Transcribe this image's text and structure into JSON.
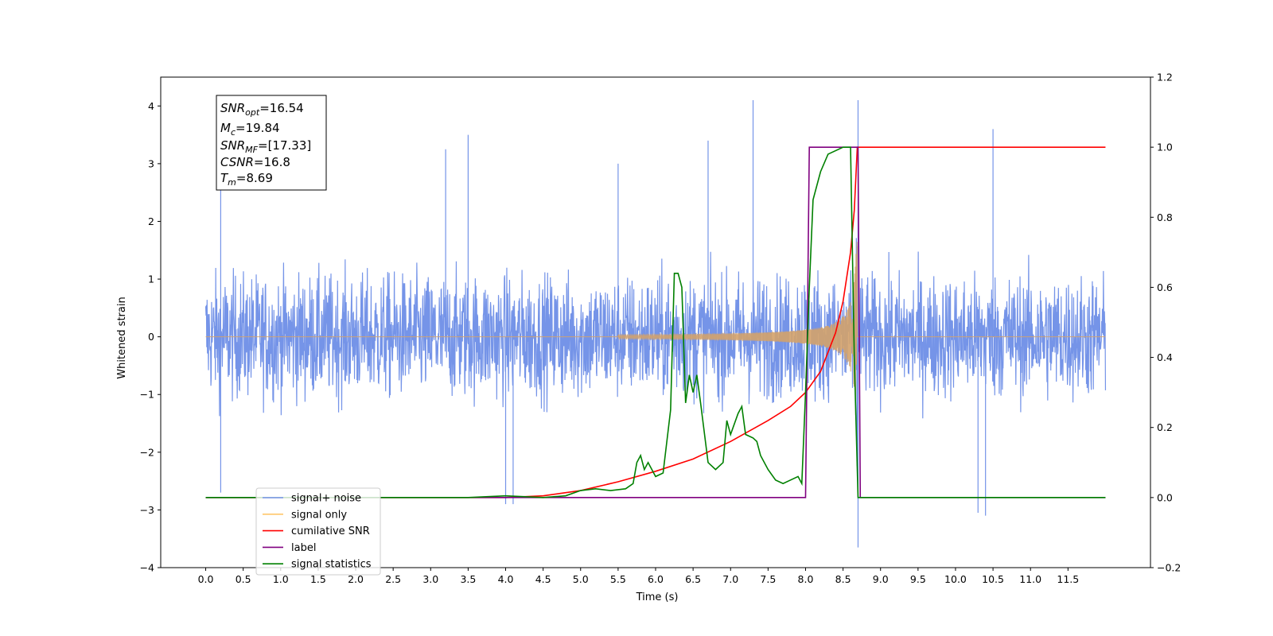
{
  "chart_data": {
    "type": "line",
    "title": "",
    "xlabel": "Time (s)",
    "ylabel": "Whitened strain",
    "xlim": [
      -0.6,
      12.6
    ],
    "ylim": [
      -4,
      4.5
    ],
    "y2lim": [
      -0.2,
      1.2
    ],
    "x_ticks": [
      0.0,
      0.5,
      1.0,
      1.5,
      2.0,
      2.5,
      3.0,
      3.5,
      4.0,
      4.5,
      5.0,
      5.5,
      6.0,
      6.5,
      7.0,
      7.5,
      8.0,
      8.5,
      9.0,
      9.5,
      10.0,
      10.5,
      11.0,
      11.5
    ],
    "x_tick_labels": [
      "0.0",
      "0.5",
      "1.0",
      "1.5",
      "2.0",
      "2.5",
      "3.0",
      "3.5",
      "4.0",
      "4.5",
      "5.0",
      "5.5",
      "6.0",
      "6.5",
      "7.0",
      "7.5",
      "8.0",
      "8.5",
      "9.0",
      "9.5",
      "10.0",
      "10.5",
      "11.0",
      "11.5"
    ],
    "y_ticks": [
      -4,
      -3,
      -2,
      -1,
      0,
      1,
      2,
      3,
      4
    ],
    "y_tick_labels": [
      "−4",
      "−3",
      "−2",
      "−1",
      "0",
      "1",
      "2",
      "3",
      "4"
    ],
    "y2_ticks": [
      -0.2,
      0.0,
      0.2,
      0.4,
      0.6,
      0.8,
      1.0,
      1.2
    ],
    "y2_tick_labels": [
      "−0.2",
      "0.0",
      "0.2",
      "0.4",
      "0.6",
      "0.8",
      "1.0",
      "1.2"
    ],
    "annotation": {
      "lines": [
        {
          "base": "SNR",
          "sub": "opt",
          "value": "=16.54"
        },
        {
          "base": "M",
          "sub": "c",
          "value": "=19.84"
        },
        {
          "base": "SNR",
          "sub": "MF",
          "value": "=[17.33]"
        },
        {
          "base": "CSNR",
          "sub": "",
          "value": "=16.8"
        },
        {
          "base": "T",
          "sub": "m",
          "value": "=8.69"
        }
      ]
    },
    "legend_position": "lower-left",
    "series": [
      {
        "name": "signal+ noise",
        "color": "#7594e8",
        "axis": "left",
        "style": "noise",
        "x_range": [
          0.0,
          12.0
        ],
        "envelope_max_abs": 2.6,
        "spikes": [
          [
            0.2,
            2.55
          ],
          [
            0.2,
            -2.7
          ],
          [
            3.2,
            3.25
          ],
          [
            3.5,
            3.5
          ],
          [
            4.0,
            -2.9
          ],
          [
            4.1,
            -2.9
          ],
          [
            5.5,
            3.0
          ],
          [
            6.7,
            3.4
          ],
          [
            7.3,
            4.1
          ],
          [
            8.7,
            4.1
          ],
          [
            8.7,
            -3.65
          ],
          [
            10.5,
            3.6
          ],
          [
            10.3,
            -3.05
          ],
          [
            10.4,
            -3.1
          ]
        ],
        "chirp_peak_time": 8.69
      },
      {
        "name": "signal only",
        "color": "#ffc66b",
        "axis": "left",
        "chirp": {
          "t_start": 5.5,
          "t_merger": 8.69,
          "peak_amp": 2.6
        }
      },
      {
        "name": "cumilative SNR",
        "color": "#ff0000",
        "axis": "right",
        "x": [
          0.0,
          4.0,
          4.5,
          5.0,
          5.5,
          6.0,
          6.5,
          7.0,
          7.5,
          7.8,
          8.0,
          8.2,
          8.4,
          8.5,
          8.6,
          8.65,
          8.69,
          12.0
        ],
        "y": [
          0.0,
          0.0,
          0.005,
          0.02,
          0.045,
          0.075,
          0.11,
          0.16,
          0.22,
          0.26,
          0.3,
          0.36,
          0.47,
          0.56,
          0.7,
          0.82,
          1.0,
          1.0
        ]
      },
      {
        "name": "label",
        "color": "#800080",
        "axis": "right",
        "x": [
          0.0,
          8.0,
          8.05,
          8.7,
          8.73,
          12.0
        ],
        "y": [
          0.0,
          0.0,
          1.0,
          1.0,
          0.0,
          0.0
        ]
      },
      {
        "name": "signal statistics",
        "color": "#008000",
        "axis": "right",
        "x": [
          0.0,
          2.5,
          3.0,
          3.5,
          4.0,
          4.5,
          4.8,
          5.0,
          5.2,
          5.4,
          5.6,
          5.7,
          5.75,
          5.8,
          5.85,
          5.9,
          6.0,
          6.1,
          6.2,
          6.25,
          6.3,
          6.35,
          6.4,
          6.45,
          6.5,
          6.55,
          6.6,
          6.7,
          6.8,
          6.9,
          6.95,
          7.0,
          7.1,
          7.15,
          7.2,
          7.3,
          7.35,
          7.4,
          7.5,
          7.6,
          7.7,
          7.8,
          7.9,
          7.95,
          8.0,
          8.05,
          8.1,
          8.2,
          8.3,
          8.5,
          8.6,
          8.65,
          8.7,
          8.73,
          12.0
        ],
        "y": [
          0.0,
          0.0,
          0.0,
          0.0,
          0.005,
          0.0,
          0.005,
          0.02,
          0.025,
          0.02,
          0.025,
          0.04,
          0.1,
          0.12,
          0.08,
          0.1,
          0.06,
          0.07,
          0.25,
          0.64,
          0.64,
          0.6,
          0.27,
          0.35,
          0.3,
          0.35,
          0.27,
          0.1,
          0.08,
          0.1,
          0.22,
          0.18,
          0.24,
          0.26,
          0.18,
          0.17,
          0.16,
          0.12,
          0.08,
          0.05,
          0.04,
          0.05,
          0.06,
          0.04,
          0.3,
          0.6,
          0.85,
          0.93,
          0.98,
          1.0,
          1.0,
          0.4,
          0.0,
          0.0,
          0.0
        ]
      }
    ]
  }
}
